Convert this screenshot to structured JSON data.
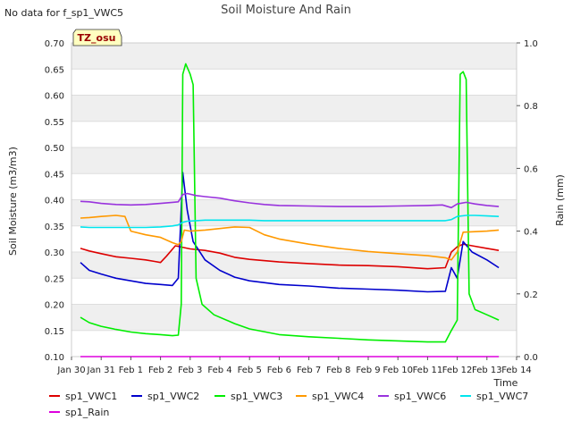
{
  "chart_data": {
    "type": "line",
    "title": "Soil Moisture And Rain",
    "no_data_note": "No data for f_sp1_VWC5",
    "station_badge": "TZ_osu",
    "xlabel": "Time",
    "ylabel": "Soil Moisture (m3/m3)",
    "y2label": "Rain (mm)",
    "xlim": [
      0,
      15
    ],
    "ylim": [
      0.1,
      0.7
    ],
    "y2lim": [
      0.0,
      1.0
    ],
    "x_tick_labels": [
      "Jan 30",
      "Jan 31",
      "Feb 1",
      "Feb 2",
      "Feb 3",
      "Feb 4",
      "Feb 5",
      "Feb 6",
      "Feb 7",
      "Feb 8",
      "Feb 9",
      "Feb 10",
      "Feb 11",
      "Feb 12",
      "Feb 13",
      "Feb 14"
    ],
    "y_tick_labels": [
      "0.10",
      "0.15",
      "0.20",
      "0.25",
      "0.30",
      "0.35",
      "0.40",
      "0.45",
      "0.50",
      "0.55",
      "0.60",
      "0.65",
      "0.70"
    ],
    "y2_tick_labels": [
      "0.0",
      "0.2",
      "0.4",
      "0.6",
      "0.8",
      "1.0"
    ],
    "grid": true,
    "legend_position": "bottom",
    "series": [
      {
        "name": "sp1_VWC1",
        "color": "#dd0000",
        "axis": "left",
        "x": [
          0.3,
          0.6,
          1,
          1.5,
          2,
          2.5,
          2.8,
          3.0,
          3.2,
          3.5,
          4,
          4.5,
          5,
          5.5,
          6,
          7,
          8,
          9,
          10,
          11,
          12,
          12.6,
          12.8,
          13.0,
          13.2,
          13.5,
          14,
          14.4
        ],
        "y": [
          0.307,
          0.302,
          0.297,
          0.291,
          0.288,
          0.285,
          0.282,
          0.28,
          0.292,
          0.312,
          0.306,
          0.303,
          0.298,
          0.29,
          0.286,
          0.281,
          0.278,
          0.275,
          0.274,
          0.272,
          0.268,
          0.27,
          0.3,
          0.31,
          0.315,
          0.312,
          0.307,
          0.303
        ]
      },
      {
        "name": "sp1_VWC2",
        "color": "#0000cc",
        "axis": "left",
        "x": [
          0.3,
          0.6,
          1,
          1.5,
          2,
          2.5,
          3.0,
          3.4,
          3.6,
          3.75,
          3.9,
          4.1,
          4.5,
          5,
          5.5,
          6,
          7,
          8,
          9,
          10,
          11,
          12,
          12.6,
          12.8,
          13.0,
          13.2,
          13.5,
          14,
          14.4
        ],
        "y": [
          0.28,
          0.265,
          0.258,
          0.25,
          0.245,
          0.24,
          0.238,
          0.236,
          0.25,
          0.452,
          0.38,
          0.32,
          0.285,
          0.265,
          0.252,
          0.245,
          0.238,
          0.235,
          0.231,
          0.229,
          0.227,
          0.224,
          0.225,
          0.27,
          0.25,
          0.32,
          0.3,
          0.285,
          0.27
        ]
      },
      {
        "name": "sp1_VWC3",
        "color": "#00ee00",
        "axis": "left",
        "x": [
          0.3,
          0.6,
          1,
          1.5,
          2,
          2.5,
          3.0,
          3.4,
          3.6,
          3.7,
          3.75,
          3.85,
          4.0,
          4.1,
          4.2,
          4.4,
          4.8,
          5.5,
          6,
          7,
          8,
          9,
          10,
          11,
          12,
          12.6,
          12.8,
          13.0,
          13.1,
          13.2,
          13.3,
          13.4,
          13.6,
          14,
          14.4
        ],
        "y": [
          0.175,
          0.165,
          0.158,
          0.152,
          0.147,
          0.144,
          0.142,
          0.14,
          0.141,
          0.2,
          0.64,
          0.66,
          0.64,
          0.62,
          0.25,
          0.2,
          0.18,
          0.163,
          0.153,
          0.142,
          0.138,
          0.135,
          0.132,
          0.13,
          0.128,
          0.128,
          0.15,
          0.17,
          0.64,
          0.645,
          0.63,
          0.22,
          0.19,
          0.18,
          0.17
        ]
      },
      {
        "name": "sp1_VWC4",
        "color": "#ff9900",
        "axis": "left",
        "x": [
          0.3,
          0.6,
          1,
          1.5,
          1.8,
          2,
          2.5,
          3.0,
          3.4,
          3.6,
          3.7,
          3.8,
          4.0,
          4.5,
          5,
          5.5,
          6,
          6.5,
          7,
          8,
          9,
          10,
          11,
          12,
          12.6,
          12.8,
          13.0,
          13.2,
          14,
          14.4
        ],
        "y": [
          0.365,
          0.366,
          0.368,
          0.37,
          0.368,
          0.34,
          0.333,
          0.328,
          0.318,
          0.314,
          0.32,
          0.342,
          0.34,
          0.342,
          0.345,
          0.348,
          0.347,
          0.333,
          0.325,
          0.315,
          0.307,
          0.301,
          0.297,
          0.293,
          0.289,
          0.285,
          0.3,
          0.338,
          0.34,
          0.342
        ]
      },
      {
        "name": "sp1_VWC6",
        "color": "#9933dd",
        "axis": "left",
        "x": [
          0.3,
          0.6,
          1,
          1.5,
          2,
          2.5,
          3.0,
          3.4,
          3.6,
          3.75,
          3.9,
          4.2,
          4.5,
          5,
          5.5,
          6,
          6.5,
          7,
          8,
          9,
          10,
          11,
          12,
          12.5,
          12.8,
          13.0,
          13.3,
          13.6,
          14,
          14.4
        ],
        "y": [
          0.397,
          0.396,
          0.393,
          0.391,
          0.39,
          0.391,
          0.393,
          0.395,
          0.396,
          0.41,
          0.412,
          0.408,
          0.406,
          0.403,
          0.398,
          0.394,
          0.391,
          0.389,
          0.388,
          0.387,
          0.387,
          0.388,
          0.389,
          0.39,
          0.385,
          0.392,
          0.395,
          0.392,
          0.389,
          0.387
        ]
      },
      {
        "name": "sp1_VWC7",
        "color": "#00e5ee",
        "axis": "left",
        "x": [
          0.3,
          0.6,
          1,
          1.5,
          2,
          2.5,
          3.0,
          3.4,
          3.6,
          3.75,
          3.9,
          4.2,
          4.5,
          5,
          5.5,
          6,
          6.5,
          7,
          8,
          9,
          10,
          11,
          12,
          12.6,
          12.8,
          13.0,
          13.3,
          13.6,
          14,
          14.4
        ],
        "y": [
          0.348,
          0.347,
          0.347,
          0.347,
          0.347,
          0.347,
          0.348,
          0.35,
          0.352,
          0.357,
          0.359,
          0.36,
          0.361,
          0.361,
          0.361,
          0.361,
          0.36,
          0.36,
          0.36,
          0.36,
          0.36,
          0.36,
          0.36,
          0.36,
          0.362,
          0.368,
          0.37,
          0.37,
          0.369,
          0.368
        ]
      },
      {
        "name": "sp1_Rain",
        "color": "#dd00dd",
        "axis": "right",
        "x": [
          0.3,
          14.4
        ],
        "y": [
          0.0,
          0.0
        ]
      }
    ]
  }
}
